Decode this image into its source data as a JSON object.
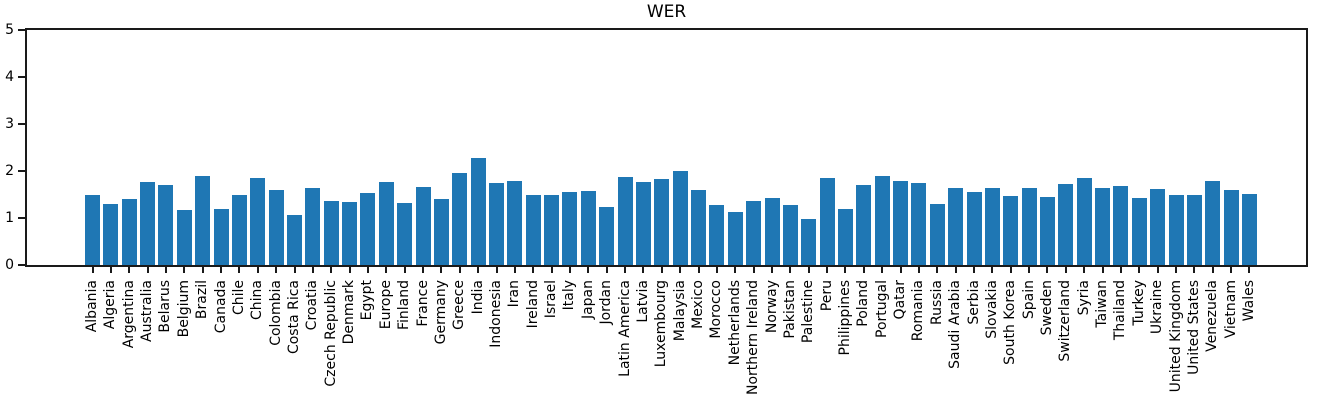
{
  "title": "WER",
  "chart_data": {
    "type": "bar",
    "title": "WER",
    "xlabel": "",
    "ylabel": "",
    "ylim": [
      0,
      5
    ],
    "yticks": [
      0,
      1,
      2,
      3,
      4,
      5
    ],
    "grid": false,
    "legend": null,
    "bar_color": "#1f77b4",
    "axis_color": "#1a1a1a",
    "categories": [
      "Albania",
      "Algeria",
      "Argentina",
      "Australia",
      "Belarus",
      "Belgium",
      "Brazil",
      "Canada",
      "Chile",
      "China",
      "Colombia",
      "Costa Rica",
      "Croatia",
      "Czech Republic",
      "Denmark",
      "Egypt",
      "Europe",
      "Finland",
      "France",
      "Germany",
      "Greece",
      "India",
      "Indonesia",
      "Iran",
      "Ireland",
      "Israel",
      "Italy",
      "Japan",
      "Jordan",
      "Latin America",
      "Latvia",
      "Luxembourg",
      "Malaysia",
      "Mexico",
      "Morocco",
      "Netherlands",
      "Northern Ireland",
      "Norway",
      "Pakistan",
      "Palestine",
      "Peru",
      "Philippines",
      "Poland",
      "Portugal",
      "Qatar",
      "Romania",
      "Russia",
      "Saudi Arabia",
      "Serbia",
      "Slovakia",
      "South Korea",
      "Spain",
      "Sweden",
      "Switzerland",
      "Syria",
      "Taiwan",
      "Thailand",
      "Turkey",
      "Ukraine",
      "United Kingdom",
      "United States",
      "Venezuela",
      "Vietnam",
      "Wales"
    ],
    "values": [
      1.48,
      1.3,
      1.4,
      1.76,
      1.7,
      1.16,
      1.89,
      1.2,
      1.5,
      1.86,
      1.6,
      1.07,
      1.63,
      1.37,
      1.33,
      1.53,
      1.77,
      1.32,
      1.67,
      1.4,
      1.95,
      2.28,
      1.74,
      1.78,
      1.5,
      1.5,
      1.55,
      1.57,
      1.23,
      1.88,
      1.76,
      1.83,
      2.0,
      1.59,
      1.27,
      1.13,
      1.37,
      1.43,
      1.27,
      0.97,
      1.86,
      1.2,
      1.7,
      1.9,
      1.78,
      1.74,
      1.29,
      1.64,
      1.55,
      1.63,
      1.46,
      1.63,
      1.44,
      1.73,
      1.86,
      1.63,
      1.68,
      1.43,
      1.61,
      1.5,
      1.49,
      1.78,
      1.59,
      1.52
    ]
  }
}
